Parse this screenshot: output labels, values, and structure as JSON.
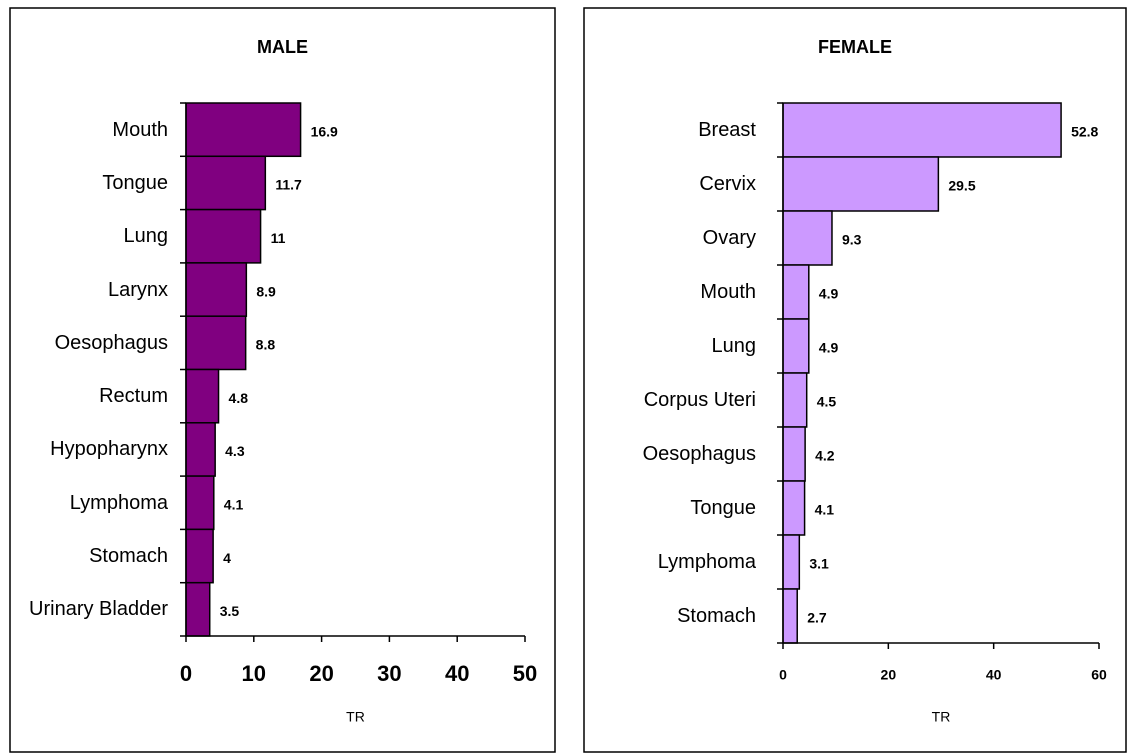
{
  "chart_data": [
    {
      "type": "barh",
      "title": "MALE",
      "xlabel": "TR",
      "color": "#800080",
      "categories": [
        "Mouth",
        "Tongue",
        "Lung",
        "Larynx",
        "Oesophagus",
        "Rectum",
        "Hypopharynx",
        "Lymphoma",
        "Stomach",
        "Urinary Bladder"
      ],
      "values": [
        16.9,
        11.7,
        11,
        8.9,
        8.8,
        4.8,
        4.3,
        4.1,
        4,
        3.5
      ],
      "xlim": [
        0,
        50
      ],
      "xticks": [
        0,
        10,
        20,
        30,
        40,
        50
      ]
    },
    {
      "type": "barh",
      "title": "FEMALE",
      "xlabel": "TR",
      "color": "#cc99ff",
      "categories": [
        "Breast",
        "Cervix",
        "Ovary",
        "Mouth",
        "Lung",
        "Corpus Uteri",
        "Oesophagus",
        "Tongue",
        "Lymphoma",
        "Stomach"
      ],
      "values": [
        52.8,
        29.5,
        9.3,
        4.9,
        4.9,
        4.5,
        4.2,
        4.1,
        3.1,
        2.7
      ],
      "xlim": [
        0,
        60
      ],
      "xticks": [
        0,
        20,
        40,
        60
      ]
    }
  ]
}
